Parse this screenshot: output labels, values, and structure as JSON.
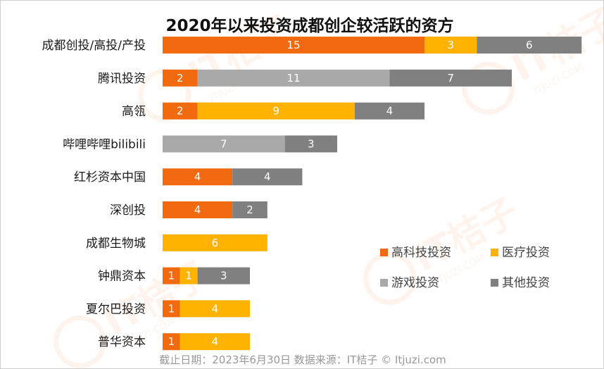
{
  "chart_data": {
    "type": "bar",
    "orientation": "horizontal",
    "stacked": true,
    "title": "2020年以来投资成都创企较活跃的资方",
    "categories": [
      "成都创投/高投/产投",
      "腾讯投资",
      "高瓴",
      "哔哩哔哩bilibili",
      "红杉资本中国",
      "深创投",
      "成都生物城",
      "钟鼎资本",
      "夏尔巴投资",
      "普华资本"
    ],
    "series": [
      {
        "name": "高科技投资",
        "color": "#f26a0f",
        "values": [
          15,
          2,
          2,
          0,
          4,
          4,
          0,
          1,
          1,
          1
        ]
      },
      {
        "name": "医疗投资",
        "color": "#ffb300",
        "values": [
          3,
          0,
          9,
          0,
          0,
          0,
          6,
          1,
          4,
          4
        ]
      },
      {
        "name": "游戏投资",
        "color": "#a9a9a9",
        "values": [
          0,
          11,
          0,
          7,
          0,
          0,
          0,
          0,
          0,
          0
        ]
      },
      {
        "name": "其他投资",
        "color": "#808080",
        "values": [
          6,
          7,
          4,
          3,
          4,
          2,
          0,
          3,
          0,
          0
        ]
      }
    ],
    "xlim": [
      0,
      24
    ],
    "grid": false,
    "legend_position": "bottom-right"
  },
  "footer": "截止日期：2023年6月30日    数据来源：IT桔子 © Itjuzi.com",
  "watermark": {
    "text": "IT桔子",
    "url": "ITJUZI.COM"
  }
}
